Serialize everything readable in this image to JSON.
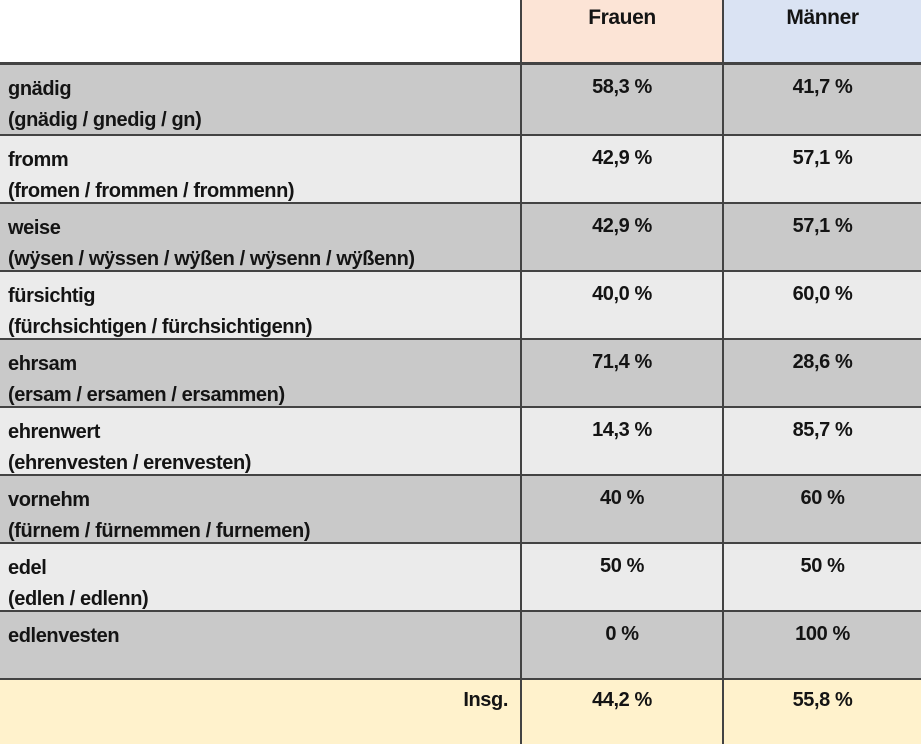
{
  "table": {
    "header": {
      "col1": "",
      "frauen": "Frauen",
      "maenner": "Männer"
    },
    "rows": [
      {
        "term": "gnädig",
        "variants": "(gnädig / gnedig / gn)",
        "frauen": "58,3 %",
        "maenner": "41,7 %"
      },
      {
        "term": "fromm",
        "variants": "(fromen / frommen / frommenn)",
        "frauen": "42,9 %",
        "maenner": "57,1 %"
      },
      {
        "term": "weise",
        "variants": "(wÿsen / wÿssen / wÿßen / wÿsenn / wÿßenn)",
        "frauen": "42,9 %",
        "maenner": "57,1 %"
      },
      {
        "term": "fürsichtig",
        "variants": "(fürchsichtigen / fürchsichtigenn)",
        "frauen": "40,0 %",
        "maenner": "60,0 %"
      },
      {
        "term": "ehrsam",
        "variants": "(ersam / ersamen / ersammen)",
        "frauen": "71,4 %",
        "maenner": "28,6 %"
      },
      {
        "term": "ehrenwert",
        "variants": "(ehrenvesten / erenvesten)",
        "frauen": "14,3 %",
        "maenner": "85,7 %"
      },
      {
        "term": "vornehm",
        "variants": "(fürnem / fürnemmen / furnemen)",
        "frauen": "40 %",
        "maenner": "60 %"
      },
      {
        "term": "edel",
        "variants": "(edlen / edlenn)",
        "frauen": "50 %",
        "maenner": "50 %"
      },
      {
        "term": "edlenvesten",
        "variants": "",
        "frauen": "0 %",
        "maenner": "100 %"
      }
    ],
    "footer": {
      "label": "Insg.",
      "frauen": "44,2 %",
      "maenner": "55,8 %"
    },
    "colors": {
      "frauen_header_bg": "#fce4d6",
      "maenner_header_bg": "#dae3f3",
      "row_dark_bg": "#c9c9c9",
      "row_light_bg": "#ebebeb",
      "footer_bg": "#fff2cc",
      "border": "#434343",
      "text": "#141414"
    }
  },
  "chart_data": {
    "type": "table",
    "title": "",
    "categories": [
      "gnädig (gnädig / gnedig / gn)",
      "fromm (fromen / frommen / frommenn)",
      "weise (wÿsen / wÿssen / wÿßen / wÿsenn / wÿßenn)",
      "fürsichtig (fürchsichtigen / fürchsichtigenn)",
      "ehrsam (ersam / ersamen / ersammen)",
      "ehrenwert (ehrenvesten / erenvesten)",
      "vornehm (fürnem / fürnemmen / furnemen)",
      "edel (edlen / edlenn)",
      "edlenvesten"
    ],
    "series": [
      {
        "name": "Frauen",
        "values": [
          58.3,
          42.9,
          42.9,
          40.0,
          71.4,
          14.3,
          40,
          50,
          0
        ]
      },
      {
        "name": "Männer",
        "values": [
          41.7,
          57.1,
          57.1,
          60.0,
          28.6,
          85.7,
          60,
          50,
          100
        ]
      }
    ],
    "unit": "%",
    "total_row": {
      "label": "Insg.",
      "Frauen": 44.2,
      "Männer": 55.8
    }
  }
}
